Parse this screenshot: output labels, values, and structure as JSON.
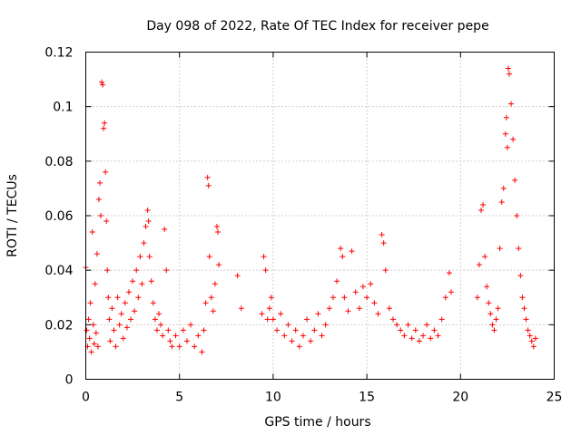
{
  "chart_data": {
    "type": "scatter",
    "title": "Day 098 of 2022, Rate Of TEC Index for receiver pepe",
    "xlabel": "GPS time / hours",
    "ylabel": "ROTI / TECUs",
    "xlim": [
      0,
      25
    ],
    "ylim": [
      0,
      0.12
    ],
    "xticks": [
      0,
      5,
      10,
      15,
      20,
      25
    ],
    "xtick_labels": [
      "0",
      "5",
      "10",
      "15",
      "20",
      "25"
    ],
    "yticks": [
      0,
      0.02,
      0.04,
      0.06,
      0.08,
      0.1,
      0.12
    ],
    "ytick_labels": [
      "0",
      "0.02",
      "0.04",
      "0.06",
      "0.08",
      "0.1",
      "0.12"
    ],
    "grid": true,
    "marker": "plus",
    "color": "#ff0000",
    "series": [
      {
        "name": "ROTI",
        "points": [
          [
            0.0,
            0.041
          ],
          [
            0.05,
            0.018
          ],
          [
            0.1,
            0.012
          ],
          [
            0.15,
            0.022
          ],
          [
            0.2,
            0.015
          ],
          [
            0.25,
            0.028
          ],
          [
            0.3,
            0.01
          ],
          [
            0.35,
            0.054
          ],
          [
            0.4,
            0.02
          ],
          [
            0.45,
            0.013
          ],
          [
            0.5,
            0.035
          ],
          [
            0.55,
            0.017
          ],
          [
            0.6,
            0.046
          ],
          [
            0.65,
            0.012
          ],
          [
            0.7,
            0.066
          ],
          [
            0.75,
            0.072
          ],
          [
            0.8,
            0.06
          ],
          [
            0.85,
            0.109
          ],
          [
            0.9,
            0.108
          ],
          [
            0.95,
            0.092
          ],
          [
            1.0,
            0.094
          ],
          [
            1.05,
            0.076
          ],
          [
            1.1,
            0.058
          ],
          [
            1.15,
            0.04
          ],
          [
            1.2,
            0.03
          ],
          [
            1.25,
            0.022
          ],
          [
            1.3,
            0.014
          ],
          [
            1.4,
            0.026
          ],
          [
            1.5,
            0.018
          ],
          [
            1.6,
            0.012
          ],
          [
            1.7,
            0.03
          ],
          [
            1.8,
            0.02
          ],
          [
            1.9,
            0.024
          ],
          [
            2.0,
            0.015
          ],
          [
            2.1,
            0.028
          ],
          [
            2.2,
            0.019
          ],
          [
            2.3,
            0.032
          ],
          [
            2.4,
            0.022
          ],
          [
            2.5,
            0.036
          ],
          [
            2.6,
            0.025
          ],
          [
            2.7,
            0.04
          ],
          [
            2.8,
            0.03
          ],
          [
            2.9,
            0.045
          ],
          [
            3.0,
            0.035
          ],
          [
            3.1,
            0.05
          ],
          [
            3.2,
            0.056
          ],
          [
            3.3,
            0.062
          ],
          [
            3.35,
            0.058
          ],
          [
            3.4,
            0.045
          ],
          [
            3.5,
            0.036
          ],
          [
            3.6,
            0.028
          ],
          [
            3.7,
            0.022
          ],
          [
            3.8,
            0.018
          ],
          [
            3.9,
            0.024
          ],
          [
            4.0,
            0.02
          ],
          [
            4.1,
            0.016
          ],
          [
            4.2,
            0.055
          ],
          [
            4.3,
            0.04
          ],
          [
            4.4,
            0.018
          ],
          [
            4.5,
            0.014
          ],
          [
            4.6,
            0.012
          ],
          [
            4.8,
            0.016
          ],
          [
            5.0,
            0.012
          ],
          [
            5.2,
            0.018
          ],
          [
            5.4,
            0.014
          ],
          [
            5.6,
            0.02
          ],
          [
            5.8,
            0.012
          ],
          [
            6.0,
            0.016
          ],
          [
            6.2,
            0.01
          ],
          [
            6.3,
            0.018
          ],
          [
            6.4,
            0.028
          ],
          [
            6.5,
            0.074
          ],
          [
            6.55,
            0.071
          ],
          [
            6.6,
            0.045
          ],
          [
            6.7,
            0.03
          ],
          [
            6.8,
            0.025
          ],
          [
            6.9,
            0.035
          ],
          [
            7.0,
            0.056
          ],
          [
            7.05,
            0.054
          ],
          [
            7.1,
            0.042
          ],
          [
            8.1,
            0.038
          ],
          [
            8.3,
            0.026
          ],
          [
            9.4,
            0.024
          ],
          [
            9.5,
            0.045
          ],
          [
            9.6,
            0.04
          ],
          [
            9.7,
            0.022
          ],
          [
            9.8,
            0.026
          ],
          [
            9.9,
            0.03
          ],
          [
            10.0,
            0.022
          ],
          [
            10.2,
            0.018
          ],
          [
            10.4,
            0.024
          ],
          [
            10.6,
            0.016
          ],
          [
            10.8,
            0.02
          ],
          [
            11.0,
            0.014
          ],
          [
            11.2,
            0.018
          ],
          [
            11.4,
            0.012
          ],
          [
            11.6,
            0.016
          ],
          [
            11.8,
            0.022
          ],
          [
            12.0,
            0.014
          ],
          [
            12.2,
            0.018
          ],
          [
            12.4,
            0.024
          ],
          [
            12.6,
            0.016
          ],
          [
            12.8,
            0.02
          ],
          [
            13.0,
            0.026
          ],
          [
            13.2,
            0.03
          ],
          [
            13.4,
            0.036
          ],
          [
            13.6,
            0.048
          ],
          [
            13.7,
            0.045
          ],
          [
            13.8,
            0.03
          ],
          [
            14.0,
            0.025
          ],
          [
            14.2,
            0.047
          ],
          [
            14.4,
            0.032
          ],
          [
            14.6,
            0.026
          ],
          [
            14.8,
            0.034
          ],
          [
            15.0,
            0.03
          ],
          [
            15.2,
            0.035
          ],
          [
            15.4,
            0.028
          ],
          [
            15.6,
            0.024
          ],
          [
            15.8,
            0.053
          ],
          [
            15.9,
            0.05
          ],
          [
            16.0,
            0.04
          ],
          [
            16.2,
            0.026
          ],
          [
            16.4,
            0.022
          ],
          [
            16.6,
            0.02
          ],
          [
            16.8,
            0.018
          ],
          [
            17.0,
            0.016
          ],
          [
            17.2,
            0.02
          ],
          [
            17.4,
            0.015
          ],
          [
            17.6,
            0.018
          ],
          [
            17.8,
            0.014
          ],
          [
            18.0,
            0.016
          ],
          [
            18.2,
            0.02
          ],
          [
            18.4,
            0.015
          ],
          [
            18.6,
            0.018
          ],
          [
            18.8,
            0.016
          ],
          [
            19.0,
            0.022
          ],
          [
            19.2,
            0.03
          ],
          [
            19.4,
            0.039
          ],
          [
            19.5,
            0.032
          ],
          [
            20.9,
            0.03
          ],
          [
            21.0,
            0.042
          ],
          [
            21.1,
            0.062
          ],
          [
            21.2,
            0.064
          ],
          [
            21.3,
            0.045
          ],
          [
            21.4,
            0.034
          ],
          [
            21.5,
            0.028
          ],
          [
            21.6,
            0.024
          ],
          [
            21.7,
            0.02
          ],
          [
            21.8,
            0.018
          ],
          [
            21.9,
            0.022
          ],
          [
            22.0,
            0.026
          ],
          [
            22.1,
            0.048
          ],
          [
            22.2,
            0.065
          ],
          [
            22.3,
            0.07
          ],
          [
            22.4,
            0.09
          ],
          [
            22.45,
            0.096
          ],
          [
            22.5,
            0.085
          ],
          [
            22.55,
            0.114
          ],
          [
            22.6,
            0.112
          ],
          [
            22.7,
            0.101
          ],
          [
            22.8,
            0.088
          ],
          [
            22.9,
            0.073
          ],
          [
            23.0,
            0.06
          ],
          [
            23.1,
            0.048
          ],
          [
            23.2,
            0.038
          ],
          [
            23.3,
            0.03
          ],
          [
            23.4,
            0.026
          ],
          [
            23.5,
            0.022
          ],
          [
            23.6,
            0.018
          ],
          [
            23.7,
            0.016
          ],
          [
            23.8,
            0.014
          ],
          [
            23.9,
            0.012
          ],
          [
            24.0,
            0.015
          ]
        ]
      }
    ]
  }
}
